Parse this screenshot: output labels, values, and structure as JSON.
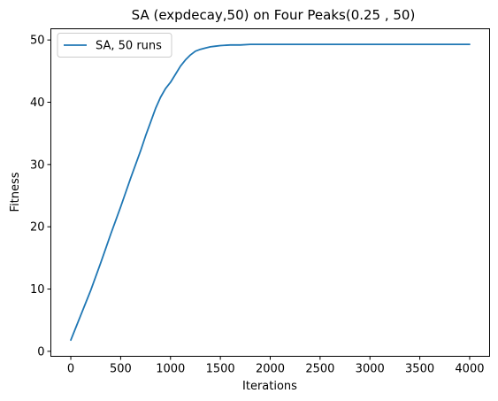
{
  "chart_data": {
    "type": "line",
    "title": "SA (expdecay,50) on Four Peaks(0.25 , 50)",
    "xlabel": "Iterations",
    "ylabel": "Fitness",
    "xlim": [
      -200,
      4200
    ],
    "ylim": [
      -0.8,
      51.8
    ],
    "xticks": [
      0,
      500,
      1000,
      1500,
      2000,
      2500,
      3000,
      3500,
      4000
    ],
    "yticks": [
      0,
      10,
      20,
      30,
      40,
      50
    ],
    "grid": false,
    "legend_location": "upper-left",
    "series": [
      {
        "name": "SA, 50 runs",
        "color": "#1f77b4",
        "x": [
          0,
          50,
          100,
          150,
          200,
          250,
          300,
          350,
          400,
          450,
          500,
          550,
          600,
          650,
          700,
          750,
          800,
          850,
          900,
          950,
          1000,
          1050,
          1100,
          1150,
          1200,
          1250,
          1300,
          1350,
          1400,
          1450,
          1500,
          1600,
          1700,
          1800,
          2000,
          2500,
          3000,
          3500,
          4000
        ],
        "y": [
          1.8,
          3.8,
          5.8,
          7.8,
          9.8,
          12.0,
          14.2,
          16.5,
          18.8,
          21.0,
          23.2,
          25.5,
          27.8,
          30.0,
          32.2,
          34.6,
          36.8,
          39.0,
          40.8,
          42.2,
          43.2,
          44.5,
          45.8,
          46.8,
          47.6,
          48.2,
          48.5,
          48.7,
          48.9,
          49.0,
          49.1,
          49.2,
          49.2,
          49.3,
          49.3,
          49.3,
          49.3,
          49.3,
          49.3
        ]
      }
    ]
  }
}
